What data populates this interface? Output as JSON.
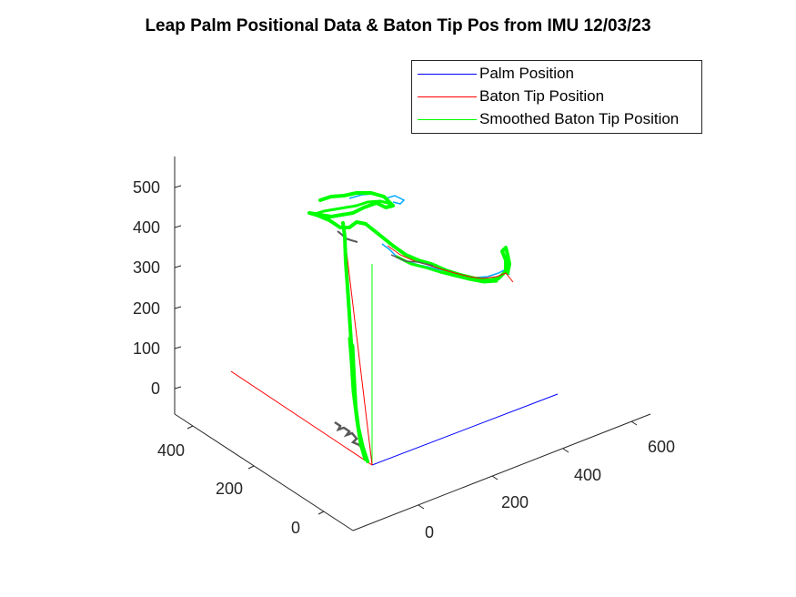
{
  "chart_data": {
    "type": "line",
    "subtype": "3d-line",
    "title": "Leap Palm Positional Data & Baton Tip Pos from IMU 12/03/23",
    "xlabel": "",
    "ylabel": "",
    "zlabel": "",
    "x_ticks": [
      "0",
      "200",
      "400",
      "600"
    ],
    "y_ticks": [
      "0",
      "200",
      "400"
    ],
    "z_ticks": [
      "0",
      "100",
      "200",
      "300",
      "400",
      "500"
    ],
    "xlim": [
      0,
      650
    ],
    "ylim": [
      0,
      500
    ],
    "zlim": [
      0,
      560
    ],
    "grid": false,
    "legend_location": "top-right",
    "series": [
      {
        "name": "Palm Position",
        "color": "#0000ff"
      },
      {
        "name": "Baton Tip Position",
        "color": "#ff0000"
      },
      {
        "name": "Smoothed Baton Tip Position",
        "color": "#00ff00"
      }
    ],
    "colors": {
      "palm": "#0000ff",
      "baton": "#ff0000",
      "smoothed": "#00ff00",
      "grey_trace": "#595959",
      "cyan_trace": "#00aaff"
    }
  }
}
